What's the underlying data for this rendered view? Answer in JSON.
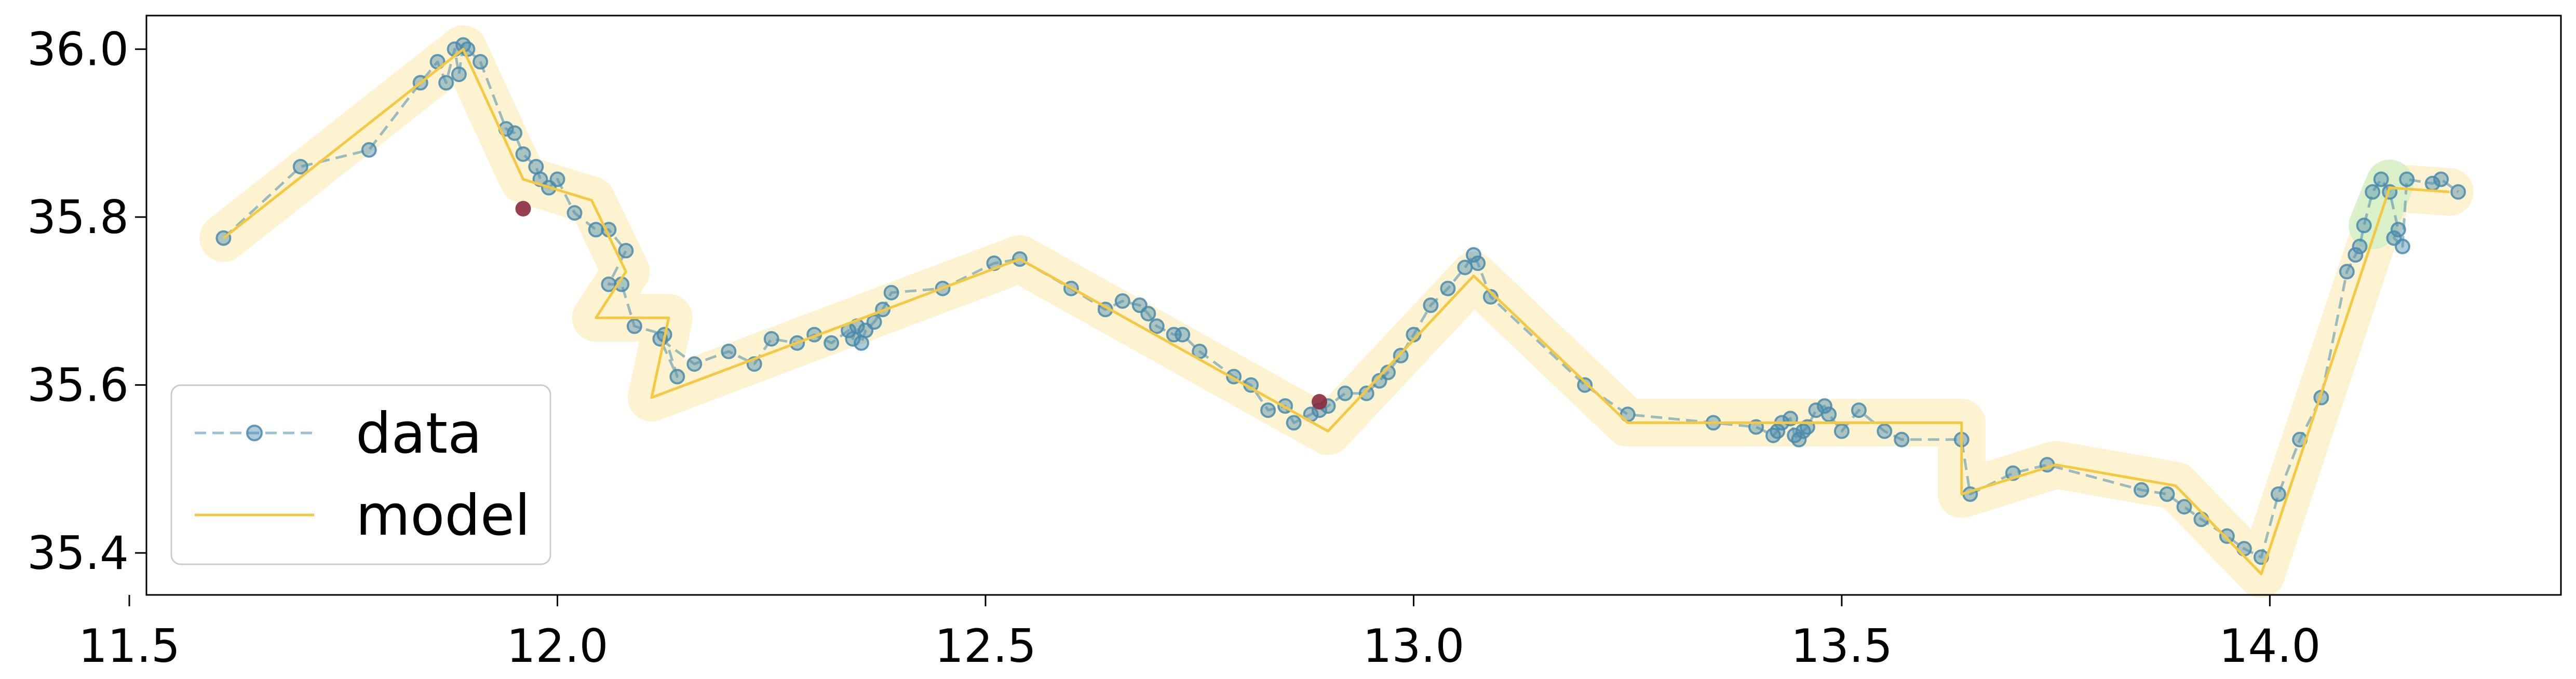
{
  "chart_data": {
    "type": "line",
    "xlim": [
      11.52,
      14.34
    ],
    "ylim": [
      35.35,
      36.04
    ],
    "grid": false,
    "legend_placement": "lower-left",
    "xticks": [
      "11.5",
      "12.0",
      "12.5",
      "13.0",
      "13.5",
      "14.0"
    ],
    "yticks": [
      "35.4",
      "35.6",
      "35.8",
      "36.0"
    ],
    "colors": {
      "data": "#4a8bad",
      "model": "#f5c842",
      "band": "#fdf0c4",
      "band_green": "#d6efc6",
      "outlier": "#8b2a3e"
    },
    "series": [
      {
        "name": "data",
        "style": "dashed-with-markers",
        "x": [
          11.61,
          11.7,
          11.78,
          11.84,
          11.86,
          11.87,
          11.88,
          11.885,
          11.89,
          11.895,
          11.91,
          11.94,
          11.95,
          11.96,
          11.975,
          11.98,
          11.99,
          12.0,
          12.02,
          12.045,
          12.06,
          12.08,
          12.06,
          12.075,
          12.09,
          12.125,
          12.14,
          12.12,
          12.16,
          12.2,
          12.23,
          12.25,
          12.28,
          12.3,
          12.32,
          12.34,
          12.345,
          12.35,
          12.355,
          12.36,
          12.37,
          12.38,
          12.39,
          12.45,
          12.51,
          12.54,
          12.6,
          12.64,
          12.66,
          12.68,
          12.69,
          12.7,
          12.72,
          12.73,
          12.75,
          12.79,
          12.81,
          12.83,
          12.85,
          12.86,
          12.88,
          12.89,
          12.9,
          12.92,
          12.945,
          12.96,
          12.97,
          12.985,
          13.0,
          13.02,
          13.04,
          13.06,
          13.07,
          13.075,
          13.09,
          13.2,
          13.25,
          13.35,
          13.4,
          13.42,
          13.425,
          13.43,
          13.44,
          13.445,
          13.45,
          13.455,
          13.46,
          13.47,
          13.48,
          13.485,
          13.5,
          13.52,
          13.55,
          13.57,
          13.64,
          13.65,
          13.7,
          13.74,
          13.85,
          13.88,
          13.9,
          13.92,
          13.95,
          13.97,
          13.99,
          14.01,
          14.035,
          14.06,
          14.09,
          14.1,
          14.105,
          14.11,
          14.12,
          14.13,
          14.14,
          14.15,
          14.145,
          14.155,
          14.16,
          14.19,
          14.2,
          14.22
        ],
        "y": [
          35.775,
          35.86,
          35.88,
          35.96,
          35.985,
          35.96,
          36.0,
          35.97,
          36.005,
          36.0,
          35.985,
          35.905,
          35.9,
          35.875,
          35.86,
          35.845,
          35.835,
          35.845,
          35.805,
          35.785,
          35.785,
          35.76,
          35.72,
          35.72,
          35.67,
          35.66,
          35.61,
          35.655,
          35.625,
          35.64,
          35.625,
          35.655,
          35.65,
          35.66,
          35.65,
          35.665,
          35.655,
          35.67,
          35.65,
          35.665,
          35.675,
          35.69,
          35.71,
          35.715,
          35.745,
          35.75,
          35.715,
          35.69,
          35.7,
          35.695,
          35.685,
          35.67,
          35.66,
          35.66,
          35.64,
          35.61,
          35.6,
          35.57,
          35.575,
          35.555,
          35.565,
          35.57,
          35.575,
          35.59,
          35.59,
          35.605,
          35.615,
          35.635,
          35.66,
          35.695,
          35.715,
          35.74,
          35.755,
          35.745,
          35.705,
          35.6,
          35.565,
          35.555,
          35.55,
          35.54,
          35.545,
          35.555,
          35.56,
          35.54,
          35.535,
          35.545,
          35.55,
          35.57,
          35.575,
          35.565,
          35.545,
          35.57,
          35.545,
          35.535,
          35.535,
          35.47,
          35.495,
          35.505,
          35.475,
          35.47,
          35.455,
          35.44,
          35.42,
          35.405,
          35.395,
          35.47,
          35.535,
          35.585,
          35.735,
          35.755,
          35.765,
          35.79,
          35.83,
          35.845,
          35.83,
          35.785,
          35.775,
          35.765,
          35.845,
          35.84,
          35.845,
          35.83
        ]
      },
      {
        "name": "model",
        "style": "solid",
        "x": [
          11.61,
          11.89,
          11.96,
          12.04,
          12.08,
          12.045,
          12.13,
          12.11,
          12.54,
          12.9,
          13.07,
          13.25,
          13.64,
          13.64,
          13.75,
          13.89,
          13.99,
          14.14,
          14.21
        ],
        "y": [
          35.775,
          36.0,
          35.845,
          35.82,
          35.735,
          35.68,
          35.68,
          35.585,
          35.75,
          35.545,
          35.73,
          35.555,
          35.555,
          35.47,
          35.505,
          35.48,
          35.375,
          35.835,
          35.83
        ]
      }
    ],
    "outliers": {
      "x": [
        11.96,
        12.89
      ],
      "y": [
        35.81,
        35.58
      ]
    },
    "green_segment": {
      "x": [
        14.12,
        14.14
      ],
      "y": [
        35.79,
        35.84
      ]
    }
  }
}
